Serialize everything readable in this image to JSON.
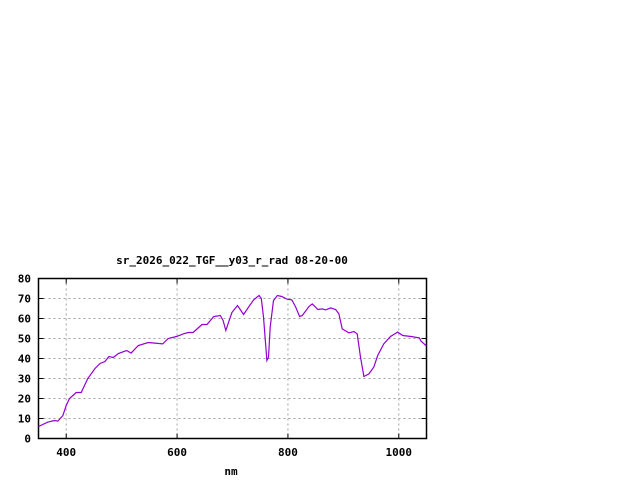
{
  "chart_data": {
    "type": "line",
    "title": "sr_2026_022_TGF__y03_r_rad 08-20-00",
    "xlabel": "nm",
    "ylabel": "",
    "xlim": [
      350,
      1050
    ],
    "ylim": [
      0,
      80
    ],
    "xticks": [
      400,
      600,
      800,
      1000
    ],
    "yticks": [
      0,
      10,
      20,
      30,
      40,
      50,
      60,
      70,
      80
    ],
    "grid": true,
    "legend": "none",
    "colors": {
      "series": "#9400d3",
      "grid": "#a0a0a0",
      "axes": "#000000"
    },
    "series": [
      {
        "x": [
          350,
          367,
          379,
          385,
          394,
          400,
          406,
          418,
          427,
          439,
          452,
          461,
          470,
          477,
          485,
          494,
          509,
          517,
          530,
          548,
          560,
          574,
          584,
          599,
          611,
          620,
          629,
          645,
          654,
          666,
          678,
          683,
          688,
          699,
          709,
          720,
          729,
          738,
          748,
          752,
          756,
          762,
          765,
          768,
          774,
          781,
          789,
          798,
          807,
          814,
          821,
          826,
          838,
          844,
          854,
          862,
          868,
          877,
          886,
          892,
          898,
          910,
          919,
          925,
          931,
          937,
          946,
          955,
          962,
          973,
          985,
          998,
          1007,
          1022,
          1037,
          1040,
          1050
        ],
        "y": [
          6,
          8.2,
          9,
          8.7,
          11.5,
          16.5,
          20,
          23,
          23,
          30,
          35,
          37.5,
          38.5,
          41,
          40.5,
          42.5,
          44,
          42.7,
          46.5,
          48,
          47.7,
          47.3,
          50,
          51,
          52.3,
          53,
          53,
          57,
          57,
          61,
          61.5,
          59,
          54,
          63,
          66.5,
          62,
          65.7,
          69.3,
          71.5,
          70,
          60.7,
          39,
          40.7,
          55.7,
          69,
          71.5,
          71,
          69.7,
          69.3,
          65.7,
          61,
          61.5,
          66,
          67.3,
          64.5,
          64.8,
          64.3,
          65.3,
          64.5,
          62.3,
          54.8,
          52.8,
          53.5,
          52.3,
          40.7,
          31,
          32.3,
          35.7,
          41.5,
          47.3,
          51,
          53.2,
          51.5,
          51,
          50.3,
          48.7,
          46.2
        ]
      }
    ]
  }
}
